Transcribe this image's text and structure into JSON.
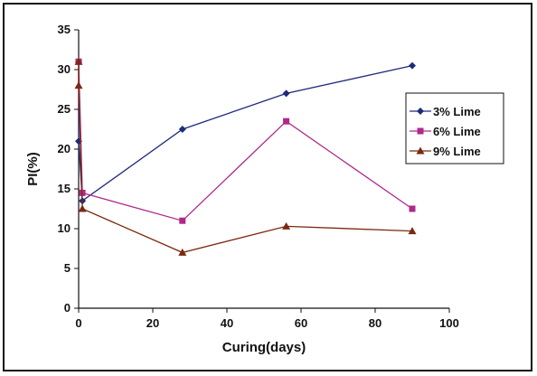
{
  "chart_data": {
    "type": "line",
    "title": "",
    "xlabel": "Curing(days)",
    "ylabel": "PI(%)",
    "xlim": [
      0,
      100
    ],
    "ylim": [
      0,
      35
    ],
    "xticks": [
      0,
      20,
      40,
      60,
      80,
      100
    ],
    "yticks": [
      0,
      5,
      10,
      15,
      20,
      25,
      30,
      35
    ],
    "grid": false,
    "legend_position": "right",
    "series": [
      {
        "name": "3% Lime",
        "color": "#1f2a7a",
        "marker": "diamond",
        "x": [
          0,
          0,
          1,
          28,
          56,
          90
        ],
        "y": [
          31,
          21,
          13.5,
          22.5,
          27,
          30.5
        ]
      },
      {
        "name": "6% Lime",
        "color": "#b0288a",
        "marker": "square",
        "x": [
          0,
          1,
          28,
          56,
          90
        ],
        "y": [
          31,
          14.5,
          11,
          23.5,
          12.5
        ]
      },
      {
        "name": "9% Lime",
        "color": "#7a2a10",
        "marker": "triangle",
        "x": [
          0,
          0,
          1,
          28,
          56,
          90
        ],
        "y": [
          31,
          28,
          12.5,
          7,
          10.3,
          9.7
        ]
      }
    ]
  }
}
